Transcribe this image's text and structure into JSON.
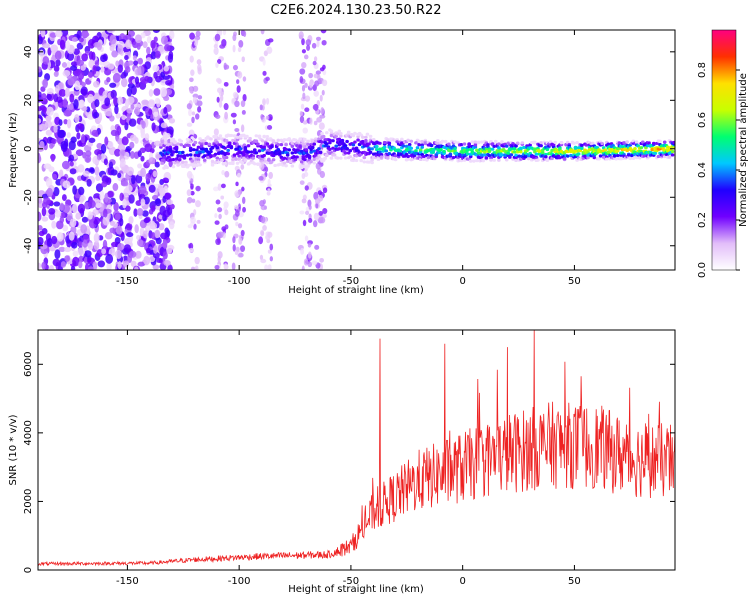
{
  "title": "C2E6.2024.130.23.50.R22",
  "chart_data": [
    {
      "type": "heatmap",
      "xlabel": "Height of straight line (km)",
      "ylabel": "Frequency (Hz)",
      "xlim": [
        -190,
        95
      ],
      "ylim": [
        -50,
        49
      ],
      "xticks": [
        -150,
        -100,
        -50,
        0,
        50
      ],
      "yticks": [
        -40,
        -20,
        0,
        20,
        40
      ],
      "colorbar": {
        "label": "Normalized spectral amplitude",
        "range": [
          0.0,
          0.96
        ],
        "ticks": [
          0.0,
          0.2,
          0.4,
          0.6,
          0.8
        ],
        "colors": [
          "#ffffff",
          "#e2bdf9",
          "#7000ff",
          "#2000ff",
          "#00c8ff",
          "#00ff70",
          "#c8ff00",
          "#ffe000",
          "#ff3000",
          "#ff0080"
        ]
      },
      "band_center_hz": [
        {
          "x": -130,
          "y": -2
        },
        {
          "x": -100,
          "y": 0
        },
        {
          "x": -70,
          "y": -2
        },
        {
          "x": -60,
          "y": 2
        },
        {
          "x": -40,
          "y": 0
        },
        {
          "x": 0,
          "y": -1
        },
        {
          "x": 50,
          "y": -1
        },
        {
          "x": 95,
          "y": 0
        }
      ],
      "noise_x_range": [
        -190,
        -130
      ]
    },
    {
      "type": "line",
      "xlabel": "Height of straight line (km)",
      "ylabel": "SNR (10 * v/v)",
      "xlim": [
        -190,
        95
      ],
      "ylim": [
        0,
        7000
      ],
      "xticks": [
        -150,
        -100,
        -50,
        0,
        50
      ],
      "yticks": [
        0,
        2000,
        4000,
        6000
      ],
      "color": "#ee2222",
      "trend": [
        {
          "x": -190,
          "y": 180
        },
        {
          "x": -140,
          "y": 200
        },
        {
          "x": -120,
          "y": 300
        },
        {
          "x": -90,
          "y": 400
        },
        {
          "x": -60,
          "y": 450
        },
        {
          "x": -50,
          "y": 700
        },
        {
          "x": -40,
          "y": 1700
        },
        {
          "x": -20,
          "y": 2600
        },
        {
          "x": 0,
          "y": 3000
        },
        {
          "x": 20,
          "y": 3400
        },
        {
          "x": 40,
          "y": 3650
        },
        {
          "x": 60,
          "y": 3600
        },
        {
          "x": 75,
          "y": 3250
        },
        {
          "x": 95,
          "y": 3150
        }
      ],
      "peaks": [
        {
          "x": -37,
          "y": 6750
        },
        {
          "x": -8,
          "y": 6600
        },
        {
          "x": 20,
          "y": 6500
        },
        {
          "x": 32,
          "y": 7000
        }
      ]
    }
  ]
}
